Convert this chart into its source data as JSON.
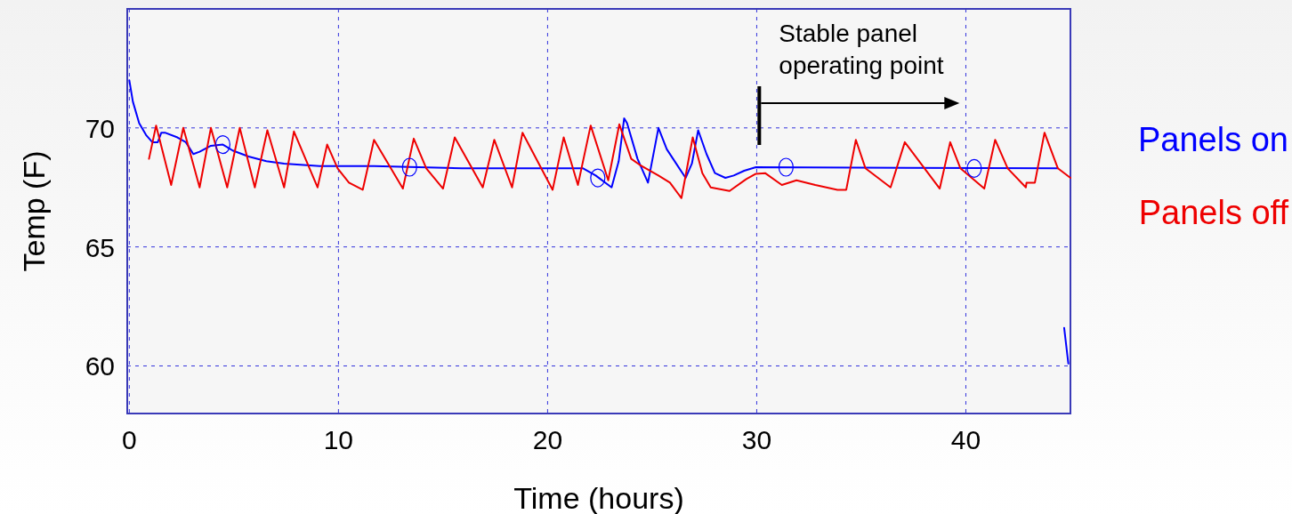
{
  "chart_data": {
    "type": "line",
    "xlabel": "Time (hours)",
    "ylabel": "Temp (F)",
    "xlim": [
      -0.1,
      45
    ],
    "ylim": [
      58,
      75
    ],
    "xticks": [
      0,
      10,
      20,
      30,
      40
    ],
    "yticks": [
      60,
      65,
      70
    ],
    "grid": true,
    "legend": "right",
    "line_style": "solid",
    "annotations": [
      "Stable panel\noperating point"
    ],
    "series": [
      {
        "name": "Panels on",
        "color": "#0000ff",
        "x": [
          0,
          0.17,
          0.47,
          0.8,
          1.1,
          1.36,
          1.53,
          1.7,
          2.3,
          2.7,
          3.06,
          3.36,
          3.9,
          4.47,
          4.94,
          5.7,
          6.55,
          7.4,
          9.1,
          11.7,
          15.9,
          21.7,
          22.3,
          23.06,
          23.4,
          23.66,
          23.8,
          24.3,
          24.8,
          25.3,
          25.7,
          26.6,
          26.9,
          27.2,
          27.6,
          28.0,
          28.5,
          28.9,
          29.4,
          29.96,
          44.4,
          44.55,
          44.7,
          44.9
        ],
        "values": [
          72.0,
          71.1,
          70.2,
          69.7,
          69.4,
          69.4,
          69.8,
          69.8,
          69.6,
          69.4,
          68.9,
          69.0,
          69.25,
          69.3,
          69.05,
          68.8,
          68.6,
          68.5,
          68.4,
          68.4,
          68.3,
          68.3,
          68.0,
          67.5,
          68.6,
          70.4,
          70.2,
          68.7,
          67.7,
          70.0,
          69.1,
          67.9,
          68.5,
          69.9,
          68.9,
          68.1,
          67.9,
          68.0,
          68.2,
          68.35,
          68.3,
          null,
          61.6,
          60.1
        ]
      },
      {
        "name": "Panels off",
        "color": "#ee0000",
        "x": [
          0.94,
          1.28,
          2.0,
          2.58,
          3.36,
          3.9,
          4.68,
          5.28,
          6.0,
          6.6,
          7.4,
          7.87,
          9.0,
          9.46,
          9.96,
          10.5,
          11.16,
          11.7,
          13.08,
          13.6,
          14.2,
          15.0,
          15.56,
          16.9,
          17.45,
          18.3,
          18.8,
          20.24,
          20.77,
          21.45,
          22.06,
          22.9,
          23.43,
          24.0,
          24.4,
          25.3,
          25.85,
          26.4,
          26.94,
          27.4,
          27.8,
          28.7,
          29.5,
          29.96,
          30.4,
          31.2,
          31.9,
          32.8,
          33.86,
          34.28,
          34.74,
          35.2,
          36.4,
          37.08,
          38.75,
          39.25,
          39.74,
          40.88,
          41.4,
          42.0,
          42.87,
          42.9,
          43.3,
          43.76,
          44.4,
          45.0
        ],
        "values": [
          68.7,
          70.1,
          67.6,
          70.0,
          67.5,
          70.0,
          67.5,
          70.0,
          67.5,
          69.9,
          67.5,
          69.85,
          67.5,
          69.3,
          68.3,
          67.7,
          67.4,
          69.5,
          67.45,
          69.55,
          68.3,
          67.45,
          69.6,
          67.5,
          69.5,
          67.5,
          69.8,
          67.4,
          69.6,
          67.6,
          70.1,
          67.8,
          70.15,
          68.7,
          68.45,
          68.0,
          67.7,
          67.05,
          69.6,
          68.1,
          67.5,
          67.35,
          67.85,
          68.07,
          68.1,
          67.6,
          67.8,
          67.6,
          67.4,
          67.4,
          69.5,
          68.3,
          67.5,
          69.4,
          67.45,
          69.4,
          68.3,
          67.45,
          69.5,
          68.3,
          67.5,
          67.7,
          67.7,
          69.8,
          68.3,
          67.9
        ]
      },
      {
        "type": "scatter",
        "marker": "circle",
        "color": "#0000ff",
        "x": [
          4.47,
          13.4,
          22.4,
          31.4,
          40.4
        ],
        "values": [
          69.3,
          68.35,
          67.9,
          68.35,
          68.3
        ]
      }
    ]
  }
}
